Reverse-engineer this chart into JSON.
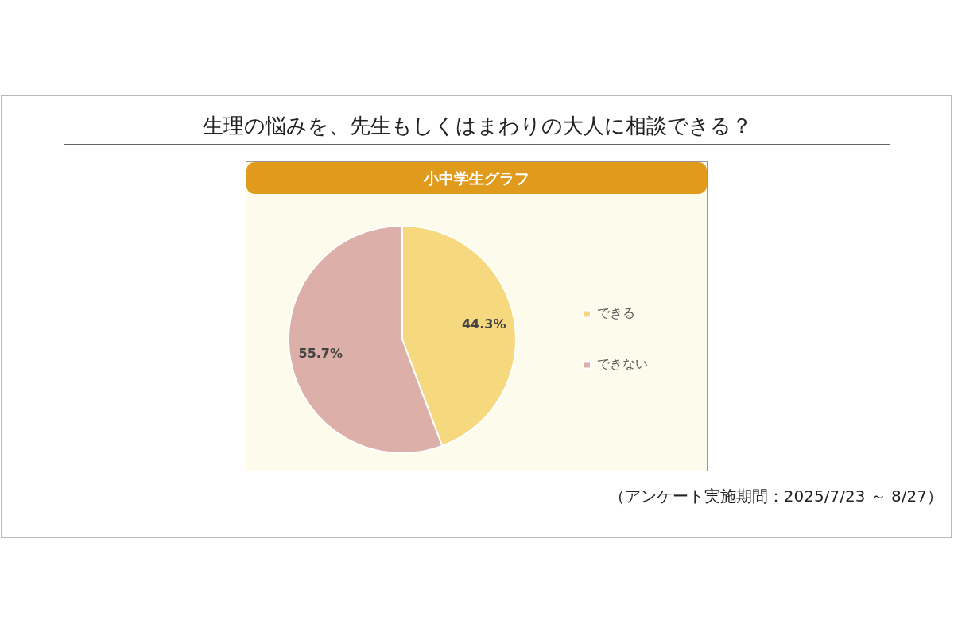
{
  "chart_data": {
    "type": "pie",
    "title": "生理の悩みを、先生もしくはまわりの大人に相談できる？",
    "subtitle": "小中学生グラフ",
    "categories": [
      "できる",
      "できない"
    ],
    "values": [
      44.3,
      55.7
    ],
    "colors": [
      "#f6d87e",
      "#dcb0a8"
    ],
    "value_labels": [
      "44.3%",
      "55.7%"
    ],
    "legend": "right",
    "annotations": [
      "（アンケート実施期間：2025/7/23 ～ 8/27）"
    ]
  }
}
